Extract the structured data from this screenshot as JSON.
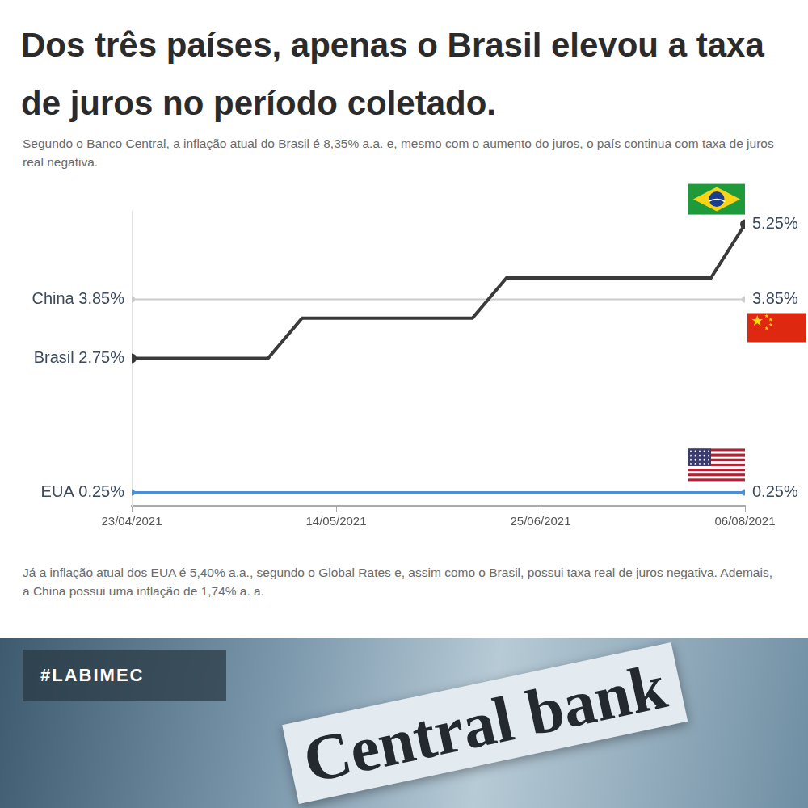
{
  "chart_data": {
    "type": "line",
    "title": "Dos três países, apenas o Brasil elevou a taxa de juros no período coletado.",
    "subtitle": "Segundo o Banco Central, a inflação atual do Brasil é 8,35% a.a. e, mesmo com o aumento do juros, o país continua com taxa de juros real negativa.",
    "categories": [
      "23/04/2021",
      null,
      null,
      null,
      null,
      null,
      "14/05/2021",
      null,
      null,
      null,
      null,
      null,
      "25/06/2021",
      null,
      null,
      null,
      null,
      null,
      "06/08/2021"
    ],
    "series": [
      {
        "name": "Brasil",
        "color": "#3a3a3a",
        "values": [
          2.75,
          2.75,
          2.75,
          2.75,
          2.75,
          3.5,
          3.5,
          3.5,
          3.5,
          3.5,
          3.5,
          4.25,
          4.25,
          4.25,
          4.25,
          4.25,
          4.25,
          4.25,
          5.25
        ]
      },
      {
        "name": "China",
        "color": "#cccccc",
        "values": [
          3.85,
          3.85,
          3.85,
          3.85,
          3.85,
          3.85,
          3.85,
          3.85,
          3.85,
          3.85,
          3.85,
          3.85,
          3.85,
          3.85,
          3.85,
          3.85,
          3.85,
          3.85,
          3.85
        ]
      },
      {
        "name": "EUA",
        "color": "#4a90d9",
        "values": [
          0.25,
          0.25,
          0.25,
          0.25,
          0.25,
          0.25,
          0.25,
          0.25,
          0.25,
          0.25,
          0.25,
          0.25,
          0.25,
          0.25,
          0.25,
          0.25,
          0.25,
          0.25,
          0.25
        ]
      }
    ],
    "ylim": [
      0,
      5.5
    ],
    "grid": false,
    "tick_labels": "x",
    "marker": "circle",
    "annotations": [
      {
        "text": "China 3.85%",
        "x": "23/04/2021",
        "y": 3.85
      },
      {
        "text": "Brasil 2.75%",
        "x": "23/04/2021",
        "y": 2.75
      },
      {
        "text": "EUA 0.25%",
        "x": "23/04/2021",
        "y": 0.25
      },
      {
        "text": "5.25%",
        "x": "06/08/2021",
        "y": 5.25
      },
      {
        "text": "3.85%",
        "x": "06/08/2021",
        "y": 3.85
      },
      {
        "text": "0.25%",
        "x": "06/08/2021",
        "y": 0.25
      }
    ]
  },
  "note": "Já a inflação atual dos EUA é 5,40% a.a., segundo o Global Rates e, assim como o Brasil, possui taxa real de juros negativa. Ademais, a China possui uma inflação de 1,74% a. a.",
  "tag": "#LABIMEC",
  "image_text": "Central bank"
}
